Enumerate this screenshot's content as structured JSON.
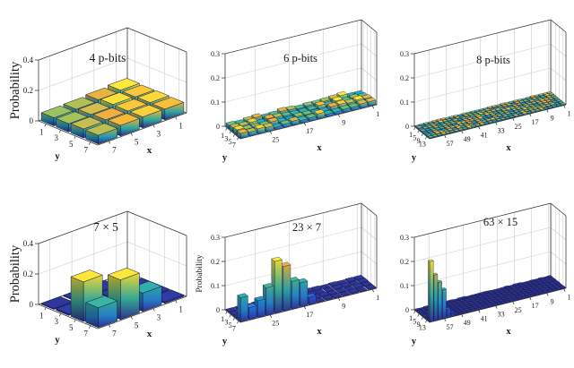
{
  "figure": {
    "description": "Six 3D bar charts of measured probability distributions: uniform sampling with 4, 6 and 8 p-bits (top row) and factorization peaks for 35, 161 and 945 (bottom row)",
    "background": "#ffffff"
  },
  "colors": {
    "colormap_stops": [
      [
        0,
        "#30308f"
      ],
      [
        0.1,
        "#2a52cf"
      ],
      [
        0.22,
        "#2c7fd8"
      ],
      [
        0.35,
        "#1e9fc9"
      ],
      [
        0.48,
        "#32b3a8"
      ],
      [
        0.6,
        "#64bf7c"
      ],
      [
        0.72,
        "#a3c25b"
      ],
      [
        0.82,
        "#d8bd4a"
      ],
      [
        0.9,
        "#f5ac3a"
      ],
      [
        1,
        "#fce838"
      ]
    ],
    "bar_edge": "#141743",
    "grid_line": "#cccccc",
    "axis_line": "#3a3a3a",
    "text": "#1a1a1a",
    "background": "#ffffff"
  },
  "chart_data": [
    {
      "type": "bar3d",
      "kind": "square",
      "title": "4 p-bits",
      "zlabel": "Probability",
      "xlabel": "x",
      "ylabel": "y",
      "xmax": 8,
      "ymax": 8,
      "zmax": 0.4,
      "xticks": [
        1,
        3,
        5,
        7
      ],
      "yticks": [
        1,
        3,
        5,
        7
      ],
      "zticks": [
        0,
        0.2,
        0.4
      ],
      "nx": 4,
      "ny": 4,
      "bars": {
        "mode": "explicit",
        "values": [
          [
            0.075,
            0.065,
            0.056,
            0.053
          ],
          [
            0.071,
            0.074,
            0.061,
            0.054
          ],
          [
            0.073,
            0.071,
            0.066,
            0.059
          ],
          [
            0.07,
            0.072,
            0.069,
            0.057
          ]
        ]
      }
    },
    {
      "type": "bar3d",
      "kind": "wide",
      "title": "6 p-bits",
      "zlabel": "",
      "xlabel": "x",
      "ylabel": "y",
      "xmax": 32,
      "ymax": 8,
      "zmax": 0.3,
      "xticks": [
        1,
        9,
        17,
        25
      ],
      "yticks": [
        1,
        3,
        5,
        7
      ],
      "zticks": [
        0,
        0.1,
        0.2,
        0.3
      ],
      "nx": 16,
      "ny": 4,
      "bars": {
        "mode": "uniform",
        "min": 0.009,
        "max": 0.023,
        "seed": 7
      }
    },
    {
      "type": "bar3d",
      "kind": "wide",
      "title": "8 p-bits",
      "zlabel": "",
      "xlabel": "x",
      "ylabel": "y",
      "xmax": 64,
      "ymax": 16,
      "zmax": 0.3,
      "xticks": [
        1,
        9,
        17,
        25,
        33,
        41,
        49,
        57
      ],
      "yticks": [
        1,
        5,
        9,
        13
      ],
      "zticks": [
        0,
        0.1,
        0.2,
        0.3
      ],
      "nx": 32,
      "ny": 8,
      "bars": {
        "mode": "uniform",
        "min": 0.002,
        "max": 0.0058,
        "seed": 11
      }
    },
    {
      "type": "bar3d",
      "kind": "square",
      "title": "7 × 5",
      "zlabel": "Probability",
      "xlabel": "x",
      "ylabel": "y",
      "xmax": 8,
      "ymax": 8,
      "zmax": 0.4,
      "xticks": [
        1,
        3,
        5,
        7
      ],
      "yticks": [
        1,
        3,
        5,
        7
      ],
      "zticks": [
        0,
        0.2,
        0.4
      ],
      "nx": 4,
      "ny": 4,
      "bars": {
        "mode": "peaks",
        "base_min": 0.005,
        "base_max": 0.011,
        "seed": 4,
        "peaks": [
          [
            7,
            5,
            0.26
          ],
          [
            5,
            7,
            0.26
          ],
          [
            7,
            7,
            0.13
          ],
          [
            3,
            7,
            0.12
          ]
        ]
      }
    },
    {
      "type": "bar3d",
      "kind": "wide",
      "title": "23 × 7",
      "zlabel": "Probability",
      "xlabel": "x",
      "ylabel": "y",
      "xmax": 32,
      "ymax": 8,
      "zmax": 0.3,
      "xticks": [
        1,
        9,
        17,
        25
      ],
      "yticks": [
        1,
        3,
        5,
        7
      ],
      "zticks": [
        0,
        0.1,
        0.2,
        0.3
      ],
      "nx": 16,
      "ny": 4,
      "bars": {
        "mode": "peaks",
        "base_min": 0.002,
        "base_max": 0.006,
        "seed": 5,
        "peaks": [
          [
            31,
            7,
            0.1
          ],
          [
            29,
            7,
            0.05
          ],
          [
            27,
            7,
            0.07
          ],
          [
            25,
            7,
            0.115
          ],
          [
            23,
            7,
            0.215
          ],
          [
            21,
            7,
            0.185
          ],
          [
            19,
            7,
            0.115
          ],
          [
            17,
            7,
            0.1
          ],
          [
            15,
            7,
            0.03
          ],
          [
            23,
            5,
            0.045
          ],
          [
            25,
            5,
            0.02
          ]
        ]
      }
    },
    {
      "type": "bar3d",
      "kind": "wide",
      "title": "63 × 15",
      "zlabel": "",
      "xlabel": "x",
      "ylabel": "y",
      "xmax": 64,
      "ymax": 16,
      "zmax": 0.3,
      "xticks": [
        1,
        9,
        17,
        25,
        33,
        41,
        49,
        57
      ],
      "yticks": [
        1,
        5,
        9,
        13
      ],
      "zticks": [
        0,
        0.1,
        0.2,
        0.3
      ],
      "nx": 32,
      "ny": 8,
      "bars": {
        "mode": "peaks",
        "base_min": 0.0015,
        "base_max": 0.0045,
        "seed": 6,
        "peaks": [
          [
            63,
            15,
            0.25
          ],
          [
            61,
            15,
            0.19
          ],
          [
            59,
            15,
            0.155
          ],
          [
            57,
            15,
            0.12
          ],
          [
            55,
            15,
            0.035
          ],
          [
            63,
            13,
            0.032
          ],
          [
            53,
            15,
            0.015
          ]
        ]
      }
    }
  ]
}
